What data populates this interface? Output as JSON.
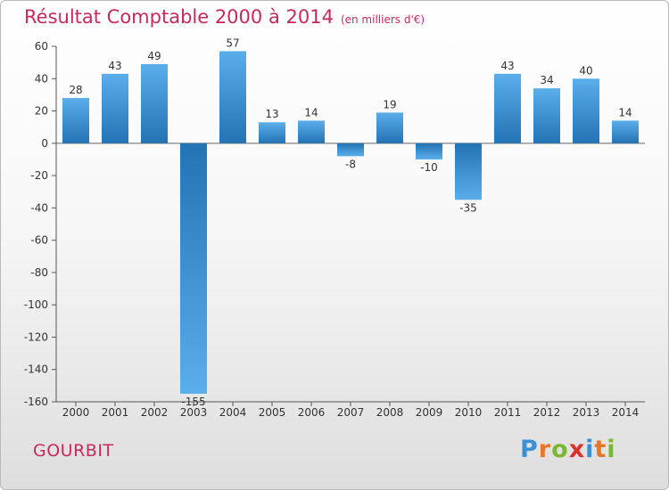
{
  "header": {
    "title": "Résultat Comptable 2000 à 2014",
    "unit": "(en milliers d'€)"
  },
  "footer": {
    "commune": "GOURBIT",
    "brand": "Proxiti"
  },
  "colors": {
    "title": "#c8285c",
    "bar_light": "#5aaeea",
    "bar_dark": "#2473b4",
    "brand_letters": [
      "#3a8fd6",
      "#e8742a",
      "#7cb82f",
      "#d9302b",
      "#3a8fd6",
      "#e8742a",
      "#7cb82f"
    ]
  },
  "chart_data": {
    "type": "bar",
    "categories": [
      "2000",
      "2001",
      "2002",
      "2003",
      "2004",
      "2005",
      "2006",
      "2007",
      "2008",
      "2009",
      "2010",
      "2011",
      "2012",
      "2013",
      "2014"
    ],
    "values": [
      28,
      43,
      49,
      -155,
      57,
      13,
      14,
      -8,
      19,
      -10,
      -35,
      43,
      34,
      40,
      14
    ],
    "labels": [
      "28",
      "43",
      "49",
      "-155",
      "57",
      "13",
      "14",
      "-8",
      "19",
      "-10",
      "-35",
      "43",
      "34",
      "40",
      "14"
    ],
    "yticks": [
      60,
      40,
      20,
      0,
      -20,
      -40,
      -60,
      -80,
      -100,
      -120,
      -140,
      -160
    ],
    "ylim": [
      -160,
      60
    ],
    "grid": false,
    "title": "Résultat Comptable 2000 à 2014",
    "unit": "(en milliers d'€)",
    "xlabel": "",
    "ylabel": ""
  }
}
